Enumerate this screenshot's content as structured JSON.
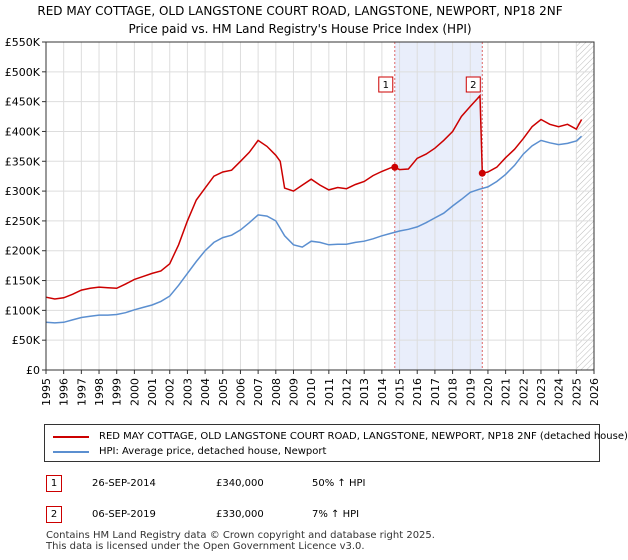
{
  "title_line1": "RED MAY COTTAGE, OLD LANGSTONE COURT ROAD, LANGSTONE, NEWPORT, NP18 2NF",
  "title_line2": "Price paid vs. HM Land Registry's House Price Index (HPI)",
  "chart_data": {
    "type": "line",
    "xlim": [
      1995,
      2026
    ],
    "ylim": [
      0,
      550000
    ],
    "y_ticks": [
      0,
      50000,
      100000,
      150000,
      200000,
      250000,
      300000,
      350000,
      400000,
      450000,
      500000,
      550000
    ],
    "y_tick_labels": [
      "£0",
      "£50K",
      "£100K",
      "£150K",
      "£200K",
      "£250K",
      "£300K",
      "£350K",
      "£400K",
      "£450K",
      "£500K",
      "£550K"
    ],
    "x_ticks": [
      1995,
      1996,
      1997,
      1998,
      1999,
      2000,
      2001,
      2002,
      2003,
      2004,
      2005,
      2006,
      2007,
      2008,
      2009,
      2010,
      2011,
      2012,
      2013,
      2014,
      2015,
      2016,
      2017,
      2018,
      2019,
      2020,
      2021,
      2022,
      2023,
      2024,
      2025,
      2026
    ],
    "x_tick_labels": [
      "1995",
      "1996",
      "1997",
      "1998",
      "1999",
      "2000",
      "2001",
      "2002",
      "2003",
      "2004",
      "2005",
      "2006",
      "2007",
      "2008",
      "2009",
      "2010",
      "2011",
      "2012",
      "2013",
      "2014",
      "2015",
      "2016",
      "2017",
      "2018",
      "2019",
      "2020",
      "2021",
      "2022",
      "2023",
      "2024",
      "2025",
      "2026"
    ],
    "grid": true,
    "highlight_range": [
      2014.73,
      2019.68
    ],
    "future_from": 2025.0,
    "series": [
      {
        "name": "RED MAY COTTAGE, OLD LANGSTONE COURT ROAD, LANGSTONE, NEWPORT, NP18 2NF (detached house)",
        "color": "#cc0000",
        "x": [
          1995.0,
          1995.5,
          1996.0,
          1996.5,
          1997.0,
          1997.5,
          1998.0,
          1998.5,
          1999.0,
          1999.5,
          2000.0,
          2000.5,
          2001.0,
          2001.5,
          2002.0,
          2002.5,
          2003.0,
          2003.5,
          2004.0,
          2004.5,
          2005.0,
          2005.5,
          2006.0,
          2006.5,
          2007.0,
          2007.5,
          2008.0,
          2008.25,
          2008.5,
          2009.0,
          2009.5,
          2010.0,
          2010.5,
          2011.0,
          2011.5,
          2012.0,
          2012.5,
          2013.0,
          2013.5,
          2014.0,
          2014.5,
          2014.73,
          2015.0,
          2015.5,
          2016.0,
          2016.5,
          2017.0,
          2017.5,
          2018.0,
          2018.5,
          2019.0,
          2019.4,
          2019.55,
          2019.68,
          2020.0,
          2020.5,
          2021.0,
          2021.5,
          2022.0,
          2022.5,
          2023.0,
          2023.5,
          2024.0,
          2024.5,
          2025.0,
          2025.3
        ],
        "values": [
          122000,
          119000,
          121000,
          127000,
          134000,
          137000,
          139000,
          138000,
          137000,
          144000,
          152000,
          157000,
          162000,
          166000,
          178000,
          210000,
          250000,
          285000,
          305000,
          325000,
          332000,
          335000,
          350000,
          365000,
          385000,
          375000,
          360000,
          350000,
          305000,
          300000,
          310000,
          320000,
          310000,
          302000,
          306000,
          304000,
          311000,
          316000,
          326000,
          333000,
          339000,
          340000,
          336000,
          337000,
          355000,
          362000,
          372000,
          385000,
          400000,
          425000,
          442000,
          455000,
          460000,
          330000,
          332000,
          340000,
          356000,
          370000,
          388000,
          408000,
          420000,
          412000,
          408000,
          412000,
          404000,
          420000
        ]
      },
      {
        "name": "HPI: Average price, detached house, Newport",
        "color": "#5b8fd0",
        "x": [
          1995.0,
          1995.5,
          1996.0,
          1996.5,
          1997.0,
          1997.5,
          1998.0,
          1998.5,
          1999.0,
          1999.5,
          2000.0,
          2000.5,
          2001.0,
          2001.5,
          2002.0,
          2002.5,
          2003.0,
          2003.5,
          2004.0,
          2004.5,
          2005.0,
          2005.5,
          2006.0,
          2006.5,
          2007.0,
          2007.5,
          2008.0,
          2008.5,
          2009.0,
          2009.5,
          2010.0,
          2010.5,
          2011.0,
          2011.5,
          2012.0,
          2012.5,
          2013.0,
          2013.5,
          2014.0,
          2014.5,
          2015.0,
          2015.5,
          2016.0,
          2016.5,
          2017.0,
          2017.5,
          2018.0,
          2018.5,
          2019.0,
          2019.5,
          2020.0,
          2020.5,
          2021.0,
          2021.5,
          2022.0,
          2022.5,
          2023.0,
          2023.5,
          2024.0,
          2024.5,
          2025.0,
          2025.3
        ],
        "values": [
          80000,
          79000,
          80000,
          84000,
          88000,
          90000,
          92000,
          92000,
          93000,
          96000,
          101000,
          105000,
          109000,
          115000,
          124000,
          142000,
          162000,
          182000,
          200000,
          214000,
          222000,
          226000,
          235000,
          247000,
          260000,
          258000,
          250000,
          225000,
          210000,
          206000,
          216000,
          214000,
          210000,
          211000,
          211000,
          214000,
          216000,
          220000,
          225000,
          229000,
          233000,
          236000,
          240000,
          247000,
          255000,
          263000,
          275000,
          286000,
          298000,
          303000,
          307000,
          316000,
          328000,
          343000,
          362000,
          376000,
          385000,
          381000,
          378000,
          380000,
          384000,
          392000
        ]
      }
    ],
    "sales": [
      {
        "label": "1",
        "x": 2014.73,
        "y": 340000
      },
      {
        "label": "2",
        "x": 2019.68,
        "y": 330000
      }
    ]
  },
  "legend": {
    "property": "RED MAY COTTAGE, OLD LANGSTONE COURT ROAD, LANGSTONE, NEWPORT, NP18 2NF (detached house)",
    "hpi": "HPI: Average price, detached house, Newport"
  },
  "sales_table": [
    {
      "num": "1",
      "date": "26-SEP-2014",
      "price": "£340,000",
      "hpi": "50% ↑ HPI"
    },
    {
      "num": "2",
      "date": "06-SEP-2019",
      "price": "£330,000",
      "hpi": "7% ↑ HPI"
    }
  ],
  "footer_line1": "Contains HM Land Registry data © Crown copyright and database right 2025.",
  "footer_line2": "This data is licensed under the Open Government Licence v3.0."
}
